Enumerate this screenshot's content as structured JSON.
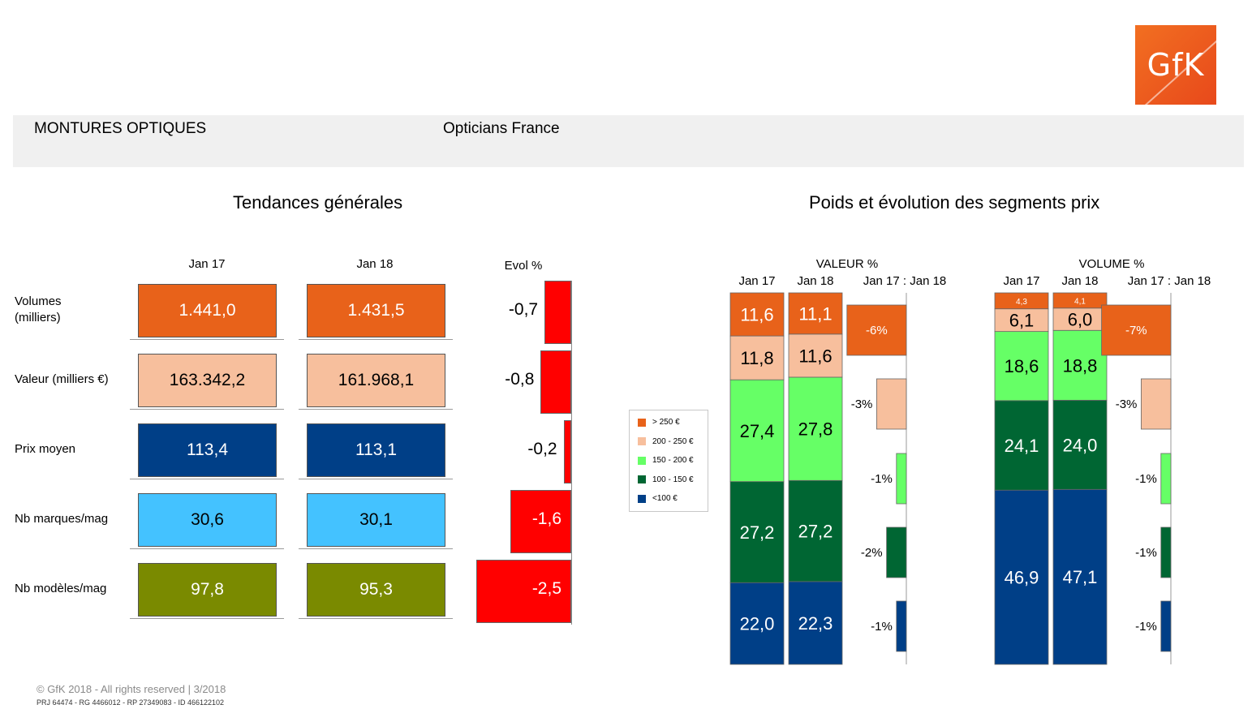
{
  "logo": {
    "text": "GfK"
  },
  "header": {
    "category": "MONTURES OPTIQUES",
    "panel": "Opticians France"
  },
  "left_title": "Tendances générales",
  "right_title": "Poids et évolution des segments prix",
  "colors": {
    "orange": "#e8621a",
    "peach": "#f7bf9d",
    "light_green": "#66ff66",
    "dark_green": "#006633",
    "navy": "#003f87",
    "sky": "#44c2ff",
    "olive": "#7a8a00",
    "red": "#ff0000"
  },
  "trend_table": {
    "col_jan17": "Jan 17",
    "col_jan18": "Jan 18",
    "col_evol": "Evol %",
    "rows": [
      {
        "label": "Volumes\n(milliers)",
        "jan17": "1.441,0",
        "jan18": "1.431,5",
        "evol": "-0,7",
        "evol_value": -0.7,
        "color": "#e8621a",
        "text_color": "#ffffff"
      },
      {
        "label": "Valeur (milliers €)",
        "jan17": "163.342,2",
        "jan18": "161.968,1",
        "evol": "-0,8",
        "evol_value": -0.8,
        "color": "#f7bf9d",
        "text_color": "#000000"
      },
      {
        "label": "Prix moyen",
        "jan17": "113,4",
        "jan18": "113,1",
        "evol": "-0,2",
        "evol_value": -0.2,
        "color": "#003f87",
        "text_color": "#ffffff"
      },
      {
        "label": "Nb marques/mag",
        "jan17": "30,6",
        "jan18": "30,1",
        "evol": "-1,6",
        "evol_value": -1.6,
        "color": "#44c2ff",
        "text_color": "#000000"
      },
      {
        "label": "Nb modèles/mag",
        "jan17": "97,8",
        "jan18": "95,3",
        "evol": "-2,5",
        "evol_value": -2.5,
        "color": "#7a8a00",
        "text_color": "#ffffff"
      }
    ]
  },
  "legend": [
    {
      "label": "> 250 €",
      "color": "#e8621a"
    },
    {
      "label": "200 - 250 €",
      "color": "#f7bf9d"
    },
    {
      "label": "150 - 200 €",
      "color": "#66ff66"
    },
    {
      "label": "100 - 150 €",
      "color": "#006633"
    },
    {
      "label": "<100 €",
      "color": "#003f87"
    }
  ],
  "chart_data": [
    {
      "type": "bar",
      "title": "VALEUR %",
      "categories": [
        "Jan 17",
        "Jan 18"
      ],
      "evol_header": "Jan 17 : Jan 18",
      "stacked": true,
      "series": [
        {
          "name": "<100 €",
          "color": "#003f87",
          "values": [
            22.0,
            22.3
          ],
          "labels": [
            "22,0",
            "22,3"
          ],
          "evol": -1,
          "evol_label": "-1%"
        },
        {
          "name": "100 - 150 €",
          "color": "#006633",
          "values": [
            27.2,
            27.2
          ],
          "labels": [
            "27,2",
            "27,2"
          ],
          "evol": -2,
          "evol_label": "-2%"
        },
        {
          "name": "150 - 200 €",
          "color": "#66ff66",
          "values": [
            27.4,
            27.8
          ],
          "labels": [
            "27,4",
            "27,8"
          ],
          "evol": -1,
          "evol_label": "-1%"
        },
        {
          "name": "200 - 250 €",
          "color": "#f7bf9d",
          "values": [
            11.8,
            11.6
          ],
          "labels": [
            "11,8",
            "11,6"
          ],
          "evol": -3,
          "evol_label": "-3%"
        },
        {
          "name": "> 250 €",
          "color": "#e8621a",
          "values": [
            11.6,
            11.1
          ],
          "labels": [
            "11,6",
            "11,1"
          ],
          "evol": -6,
          "evol_label": "-6%"
        }
      ]
    },
    {
      "type": "bar",
      "title": "VOLUME %",
      "categories": [
        "Jan 17",
        "Jan 18"
      ],
      "evol_header": "Jan 17 : Jan 18",
      "stacked": true,
      "series": [
        {
          "name": "<100 €",
          "color": "#003f87",
          "values": [
            46.9,
            47.1
          ],
          "labels": [
            "46,9",
            "47,1"
          ],
          "evol": -1,
          "evol_label": "-1%"
        },
        {
          "name": "100 - 150 €",
          "color": "#006633",
          "values": [
            24.1,
            24.0
          ],
          "labels": [
            "24,1",
            "24,0"
          ],
          "evol": -1,
          "evol_label": "-1%"
        },
        {
          "name": "150 - 200 €",
          "color": "#66ff66",
          "values": [
            18.6,
            18.8
          ],
          "labels": [
            "18,6",
            "18,8"
          ],
          "evol": -1,
          "evol_label": "-1%"
        },
        {
          "name": "200 - 250 €",
          "color": "#f7bf9d",
          "values": [
            6.1,
            6.0
          ],
          "labels": [
            "6,1",
            "6,0"
          ],
          "evol": -3,
          "evol_label": "-3%"
        },
        {
          "name": "> 250 €",
          "color": "#e8621a",
          "values": [
            4.3,
            4.1
          ],
          "labels": [
            "4,3",
            "4,1"
          ],
          "evol": -7,
          "evol_label": "-7%"
        }
      ]
    }
  ],
  "footer": {
    "copyright": "© GfK 2018 - All rights reserved | 3/2018",
    "ids": "PRJ 64474 - RG 4466012 - RP 27349083 - ID 466122102"
  }
}
